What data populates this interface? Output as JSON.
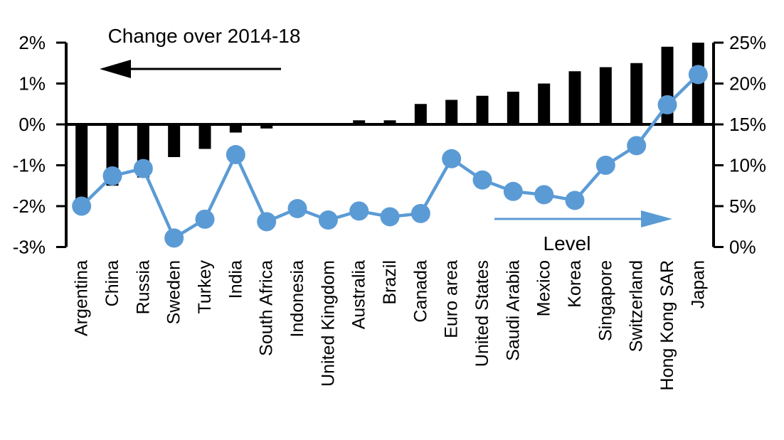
{
  "chart_data": {
    "type": "combo_bar_line",
    "title": "",
    "categories": [
      "Argentina",
      "China",
      "Russia",
      "Sweden",
      "Turkey",
      "India",
      "South Africa",
      "Indonesia",
      "United Kingdom",
      "Australia",
      "Brazil",
      "Canada",
      "Euro area",
      "United States",
      "Saudi Arabia",
      "Mexico",
      "Korea",
      "Singapore",
      "Switzerland",
      "Hong Kong SAR",
      "Japan"
    ],
    "series": [
      {
        "name": "Change over 2014-18",
        "type": "bar",
        "axis": "left",
        "color": "#000000",
        "unit": "percentage points",
        "values": [
          -1.9,
          -1.5,
          -1.3,
          -0.8,
          -0.6,
          -0.2,
          -0.1,
          0.0,
          0.0,
          0.1,
          0.1,
          0.5,
          0.6,
          0.7,
          0.8,
          1.0,
          1.3,
          1.4,
          1.5,
          1.9,
          2.0
        ]
      },
      {
        "name": "Level",
        "type": "line",
        "axis": "right",
        "color": "#5B9BD5",
        "unit": "%",
        "values": [
          5.0,
          8.7,
          9.6,
          1.1,
          3.4,
          11.3,
          3.1,
          4.7,
          3.3,
          4.4,
          3.7,
          4.1,
          10.8,
          8.2,
          6.8,
          6.4,
          5.7,
          10.0,
          12.4,
          17.4,
          21.1
        ]
      }
    ],
    "left_axis": {
      "tick_labels": [
        "2%",
        "1%",
        "0%",
        "-1%",
        "-2%",
        "-3%"
      ],
      "tick_values": [
        2,
        1,
        0,
        -1,
        -2,
        -3
      ],
      "range": [
        -3,
        2
      ]
    },
    "right_axis": {
      "tick_labels": [
        "25%",
        "20%",
        "15%",
        "10%",
        "5%",
        "0%"
      ],
      "tick_values": [
        25,
        20,
        15,
        10,
        5,
        0
      ],
      "range": [
        0,
        25
      ]
    },
    "annotations": [
      {
        "text": "Change over 2014-18",
        "arrow_direction": "left",
        "color": "#000000"
      },
      {
        "text": "Level",
        "arrow_direction": "right",
        "color": "#5B9BD5"
      }
    ],
    "grid": false,
    "legend_position": "none",
    "colors": {
      "bar": "#000000",
      "line": "#5B9BD5",
      "background": "#ffffff"
    }
  }
}
